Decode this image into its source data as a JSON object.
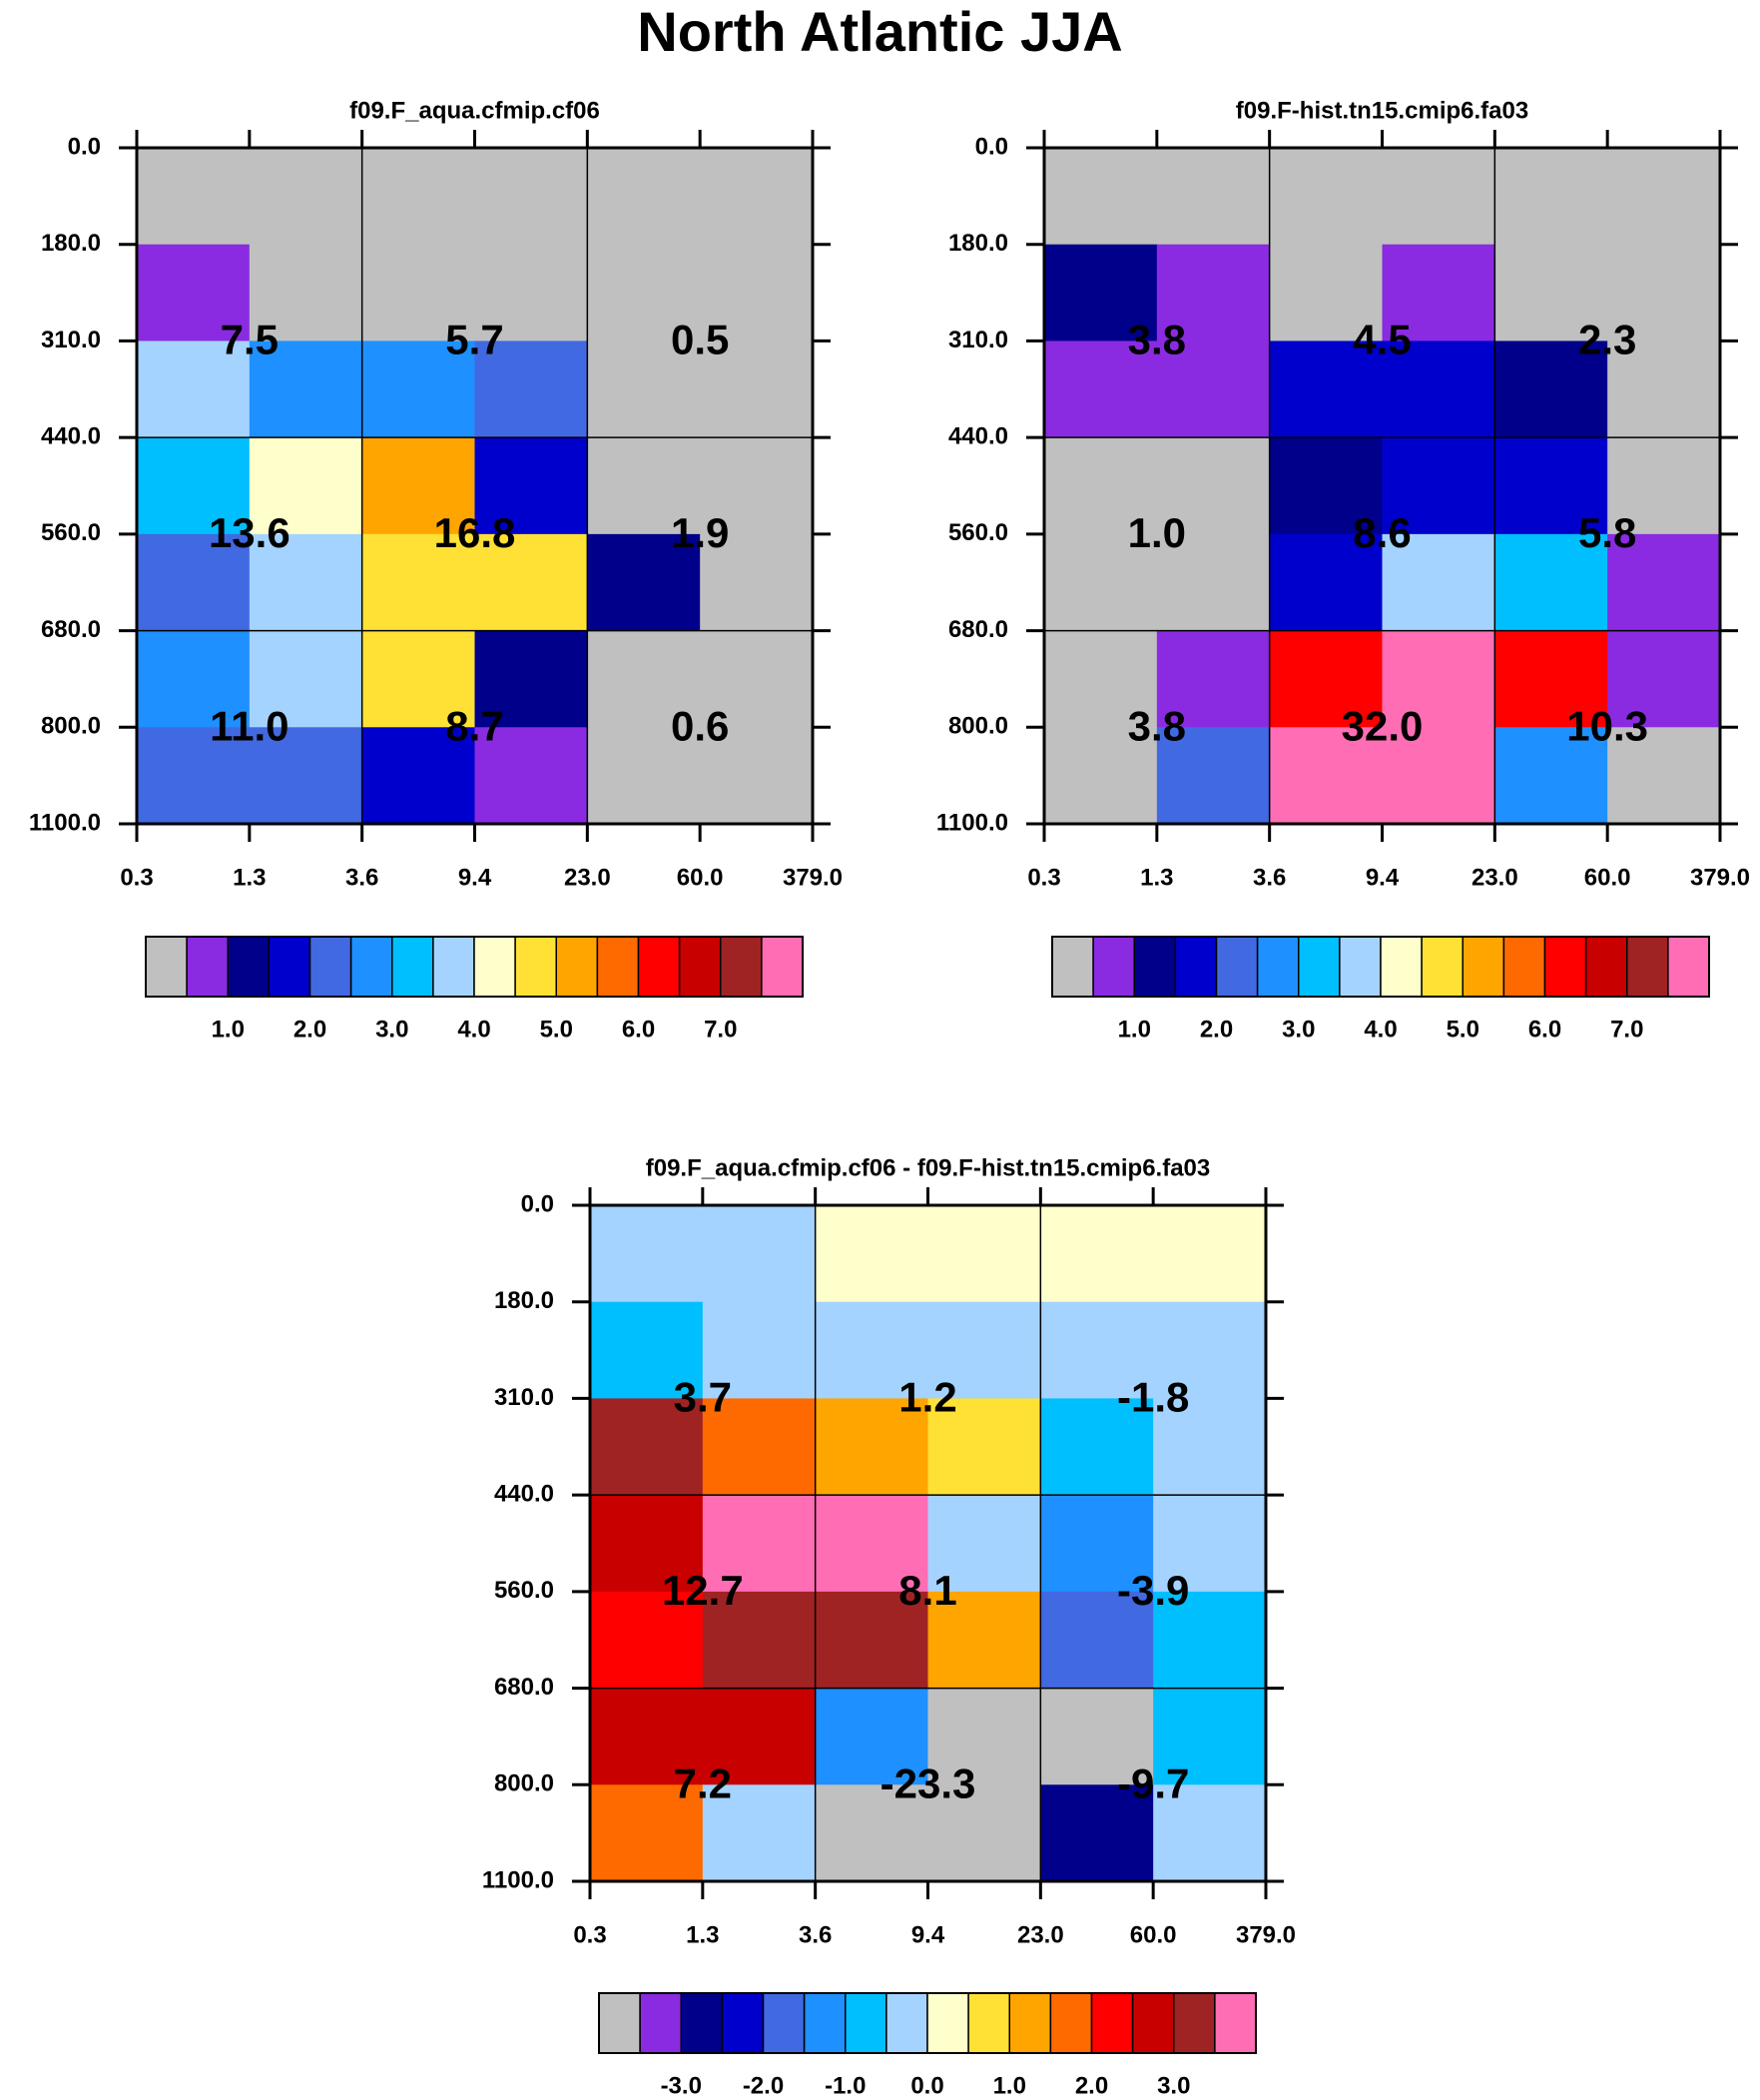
{
  "main_title": "North Atlantic JJA",
  "x_tick_labels": [
    "0.3",
    "1.3",
    "3.6",
    "9.4",
    "23.0",
    "60.0",
    "379.0"
  ],
  "y_tick_labels": [
    "0.0",
    "180.0",
    "310.0",
    "440.0",
    "560.0",
    "680.0",
    "800.0",
    "1100.0"
  ],
  "colors": {
    "bin_colors": [
      "#c0c0c0",
      "#8a2be2",
      "#00008b",
      "#0000cd",
      "#4169e1",
      "#1e90ff",
      "#00bfff",
      "#a4d3ff",
      "#ffffcc",
      "#ffe135",
      "#ffa500",
      "#ff6a00",
      "#ff0000",
      "#c80000",
      "#a02323",
      "#ff6eb4"
    ]
  },
  "chart_data": [
    {
      "type": "heatmap",
      "title": "f09.F_aqua.cfmip.cf06",
      "x_ticks": [
        "0.3",
        "1.3",
        "3.6",
        "9.4",
        "23.0",
        "60.0",
        "379.0"
      ],
      "y_ticks": [
        "0.0",
        "180.0",
        "310.0",
        "440.0",
        "560.0",
        "680.0",
        "800.0",
        "1100.0"
      ],
      "bin_grid": [
        [
          0,
          0,
          0,
          0,
          0,
          0
        ],
        [
          1,
          0,
          0,
          0,
          0,
          0
        ],
        [
          7,
          5,
          5,
          4,
          0,
          0
        ],
        [
          6,
          8,
          10,
          3,
          0,
          0
        ],
        [
          4,
          7,
          9,
          9,
          2,
          0
        ],
        [
          5,
          7,
          9,
          2,
          0,
          0
        ],
        [
          4,
          4,
          3,
          1,
          0,
          0
        ]
      ],
      "cell_totals": [
        [
          "7.5",
          "5.7",
          "0.5"
        ],
        [
          "13.6",
          "16.8",
          "1.9"
        ],
        [
          "11.0",
          "8.7",
          "0.6"
        ]
      ],
      "colorbar_labels": [
        "1.0",
        "2.0",
        "3.0",
        "4.0",
        "5.0",
        "6.0",
        "7.0"
      ]
    },
    {
      "type": "heatmap",
      "title": "f09.F-hist.tn15.cmip6.fa03",
      "x_ticks": [
        "0.3",
        "1.3",
        "3.6",
        "9.4",
        "23.0",
        "60.0",
        "379.0"
      ],
      "y_ticks": [
        "0.0",
        "180.0",
        "310.0",
        "440.0",
        "560.0",
        "680.0",
        "800.0",
        "1100.0"
      ],
      "bin_grid": [
        [
          0,
          0,
          0,
          0,
          0,
          0
        ],
        [
          2,
          1,
          0,
          1,
          0,
          0
        ],
        [
          1,
          1,
          3,
          3,
          2,
          0
        ],
        [
          0,
          0,
          2,
          3,
          3,
          0
        ],
        [
          0,
          0,
          3,
          7,
          6,
          1
        ],
        [
          0,
          1,
          12,
          15,
          12,
          1
        ],
        [
          0,
          4,
          15,
          15,
          5,
          0
        ]
      ],
      "cell_totals": [
        [
          "3.8",
          "4.5",
          "2.3"
        ],
        [
          "1.0",
          "8.6",
          "5.8"
        ],
        [
          "3.8",
          "32.0",
          "10.3"
        ]
      ],
      "colorbar_labels": [
        "1.0",
        "2.0",
        "3.0",
        "4.0",
        "5.0",
        "6.0",
        "7.0"
      ]
    },
    {
      "type": "heatmap",
      "title": "f09.F_aqua.cfmip.cf06 - f09.F-hist.tn15.cmip6.fa03",
      "x_ticks": [
        "0.3",
        "1.3",
        "3.6",
        "9.4",
        "23.0",
        "60.0",
        "379.0"
      ],
      "y_ticks": [
        "0.0",
        "180.0",
        "310.0",
        "440.0",
        "560.0",
        "680.0",
        "800.0",
        "1100.0"
      ],
      "bin_grid": [
        [
          7,
          7,
          8,
          8,
          8,
          8
        ],
        [
          6,
          7,
          7,
          7,
          7,
          7
        ],
        [
          14,
          11,
          10,
          9,
          6,
          7
        ],
        [
          13,
          15,
          15,
          7,
          5,
          7
        ],
        [
          12,
          14,
          14,
          10,
          4,
          6
        ],
        [
          13,
          13,
          5,
          0,
          0,
          6
        ],
        [
          11,
          7,
          0,
          0,
          2,
          7
        ]
      ],
      "cell_totals": [
        [
          "3.7",
          "1.2",
          "-1.8"
        ],
        [
          "12.7",
          "8.1",
          "-3.9"
        ],
        [
          "7.2",
          "-23.3",
          "-9.7"
        ]
      ],
      "colorbar_labels": [
        "-3.0",
        "-2.0",
        "-1.0",
        "0.0",
        "1.0",
        "2.0",
        "3.0"
      ]
    }
  ]
}
